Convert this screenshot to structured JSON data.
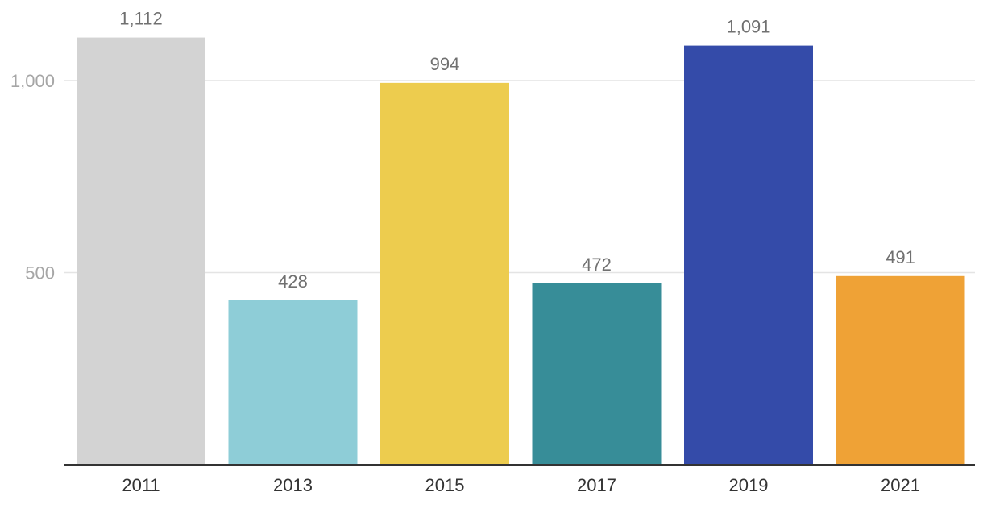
{
  "chart_data": {
    "type": "bar",
    "title": "",
    "xlabel": "",
    "ylabel": "",
    "categories": [
      "2011",
      "2013",
      "2015",
      "2017",
      "2019",
      "2021"
    ],
    "values": [
      1112,
      428,
      994,
      472,
      1091,
      491
    ],
    "data_labels": [
      "1,112",
      "428",
      "994",
      "472",
      "1,091",
      "491"
    ],
    "colors": [
      "#d3d3d3",
      "#8ecdd7",
      "#edcc4e",
      "#378d98",
      "#344ba9",
      "#efa236"
    ],
    "ylim": [
      0,
      1200
    ],
    "yticks": [
      500,
      1000
    ],
    "ytick_labels": [
      "500",
      "1,000"
    ],
    "grid": true,
    "legend": "none"
  }
}
